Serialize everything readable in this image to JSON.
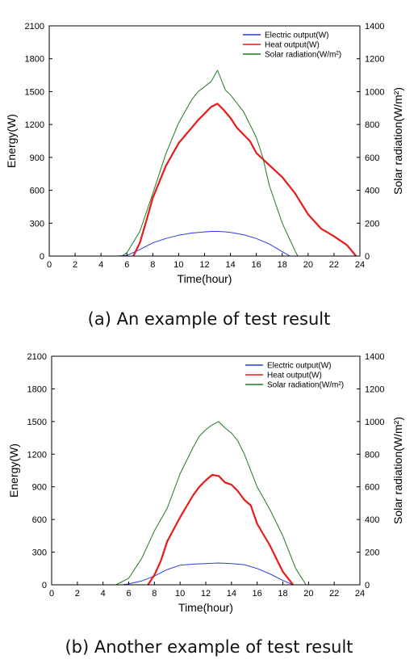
{
  "figure": {
    "caption_a": "(a) An example of test result",
    "caption_b": "(b) Another example of test result"
  },
  "chart_data": [
    {
      "id": "a",
      "type": "line",
      "xlabel": "Time(hour)",
      "ylabel": "Energy(W)",
      "y2label": "Solar radiation(W/m²)",
      "xlim": [
        0,
        24
      ],
      "ylim": [
        0,
        2100
      ],
      "y2lim": [
        0,
        1400
      ],
      "xticks": [
        "0",
        "2",
        "4",
        "6",
        "8",
        "10",
        "12",
        "14",
        "16",
        "18",
        "20",
        "22",
        "24"
      ],
      "yticks": [
        "0",
        "300",
        "600",
        "900",
        "1200",
        "1500",
        "1800",
        "2100"
      ],
      "y2ticks": [
        "0",
        "200",
        "400",
        "600",
        "800",
        "1000",
        "1200",
        "1400"
      ],
      "grid": false,
      "legend_position": "top-right",
      "series": [
        {
          "name": "Electric output(W)",
          "color": "#2a3be0",
          "axis": "left",
          "x": [
            5.2,
            6,
            7,
            8,
            9,
            10,
            11,
            12,
            12.5,
            13,
            13.5,
            14,
            15,
            16,
            17,
            18,
            18.6
          ],
          "values": [
            0,
            5,
            60,
            120,
            160,
            190,
            210,
            220,
            225,
            225,
            222,
            215,
            195,
            160,
            110,
            40,
            0
          ]
        },
        {
          "name": "Heat output(W)",
          "color": "#e81a1a",
          "axis": "left",
          "x": [
            6.5,
            7,
            7.5,
            8,
            9,
            10,
            11,
            11.5,
            12,
            12.5,
            13,
            13.5,
            14,
            14.5,
            15,
            15.5,
            16,
            17,
            18,
            19,
            20,
            21,
            22,
            23,
            23.7
          ],
          "values": [
            0,
            120,
            320,
            530,
            820,
            1030,
            1170,
            1240,
            1300,
            1360,
            1390,
            1330,
            1260,
            1170,
            1110,
            1050,
            940,
            830,
            720,
            570,
            380,
            250,
            180,
            100,
            0
          ]
        },
        {
          "name": "Solar radiation(W/m²)",
          "color": "#1f7a1f",
          "axis": "right",
          "x": [
            5.6,
            6,
            7,
            8,
            9,
            10,
            11,
            11.5,
            12,
            12.5,
            13,
            13.3,
            13.6,
            14,
            15,
            16,
            16.5,
            17,
            18,
            19,
            19.2
          ],
          "values": [
            0,
            20,
            150,
            380,
            620,
            810,
            950,
            1000,
            1030,
            1060,
            1130,
            1070,
            1010,
            980,
            880,
            720,
            600,
            430,
            200,
            30,
            0
          ]
        }
      ]
    },
    {
      "id": "b",
      "type": "line",
      "xlabel": "Time(hour)",
      "ylabel": "Energy(W)",
      "y2label": "Solar radiation(W/m²)",
      "xlim": [
        0,
        24
      ],
      "ylim": [
        0,
        2100
      ],
      "y2lim": [
        0,
        1400
      ],
      "xticks": [
        "0",
        "2",
        "4",
        "6",
        "8",
        "10",
        "12",
        "14",
        "16",
        "18",
        "20",
        "22",
        "24"
      ],
      "yticks": [
        "0",
        "300",
        "600",
        "900",
        "1200",
        "1500",
        "1800",
        "2100"
      ],
      "y2ticks": [
        "0",
        "200",
        "400",
        "600",
        "800",
        "1000",
        "1200",
        "1400"
      ],
      "grid": false,
      "legend_position": "top-right",
      "series": [
        {
          "name": "Electric output(W)",
          "color": "#2a3be0",
          "axis": "left",
          "x": [
            5.5,
            6,
            7,
            8,
            9,
            10,
            11,
            12,
            13,
            14,
            15,
            16,
            17,
            18,
            18.8
          ],
          "values": [
            0,
            8,
            35,
            80,
            140,
            180,
            190,
            195,
            200,
            195,
            185,
            150,
            100,
            40,
            0
          ]
        },
        {
          "name": "Heat output(W)",
          "color": "#e81a1a",
          "axis": "left",
          "x": [
            7.5,
            8,
            8.5,
            9,
            10,
            11,
            11.5,
            12,
            12.5,
            13,
            13.5,
            14,
            14.5,
            15,
            15.5,
            16,
            17,
            18,
            18.8
          ],
          "values": [
            0,
            90,
            220,
            400,
            620,
            820,
            900,
            960,
            1010,
            1000,
            940,
            920,
            860,
            780,
            730,
            560,
            360,
            120,
            0
          ]
        },
        {
          "name": "Solar radiation(W/m²)",
          "color": "#1f7a1f",
          "axis": "right",
          "x": [
            5,
            6,
            7,
            8,
            9,
            10,
            11,
            11.5,
            12,
            12.5,
            13,
            13.5,
            14,
            14.5,
            15,
            15.5,
            16,
            17,
            18,
            19,
            19.8
          ],
          "values": [
            0,
            40,
            160,
            330,
            470,
            680,
            840,
            910,
            950,
            980,
            1000,
            960,
            930,
            880,
            800,
            700,
            600,
            460,
            300,
            100,
            0
          ]
        }
      ]
    }
  ]
}
